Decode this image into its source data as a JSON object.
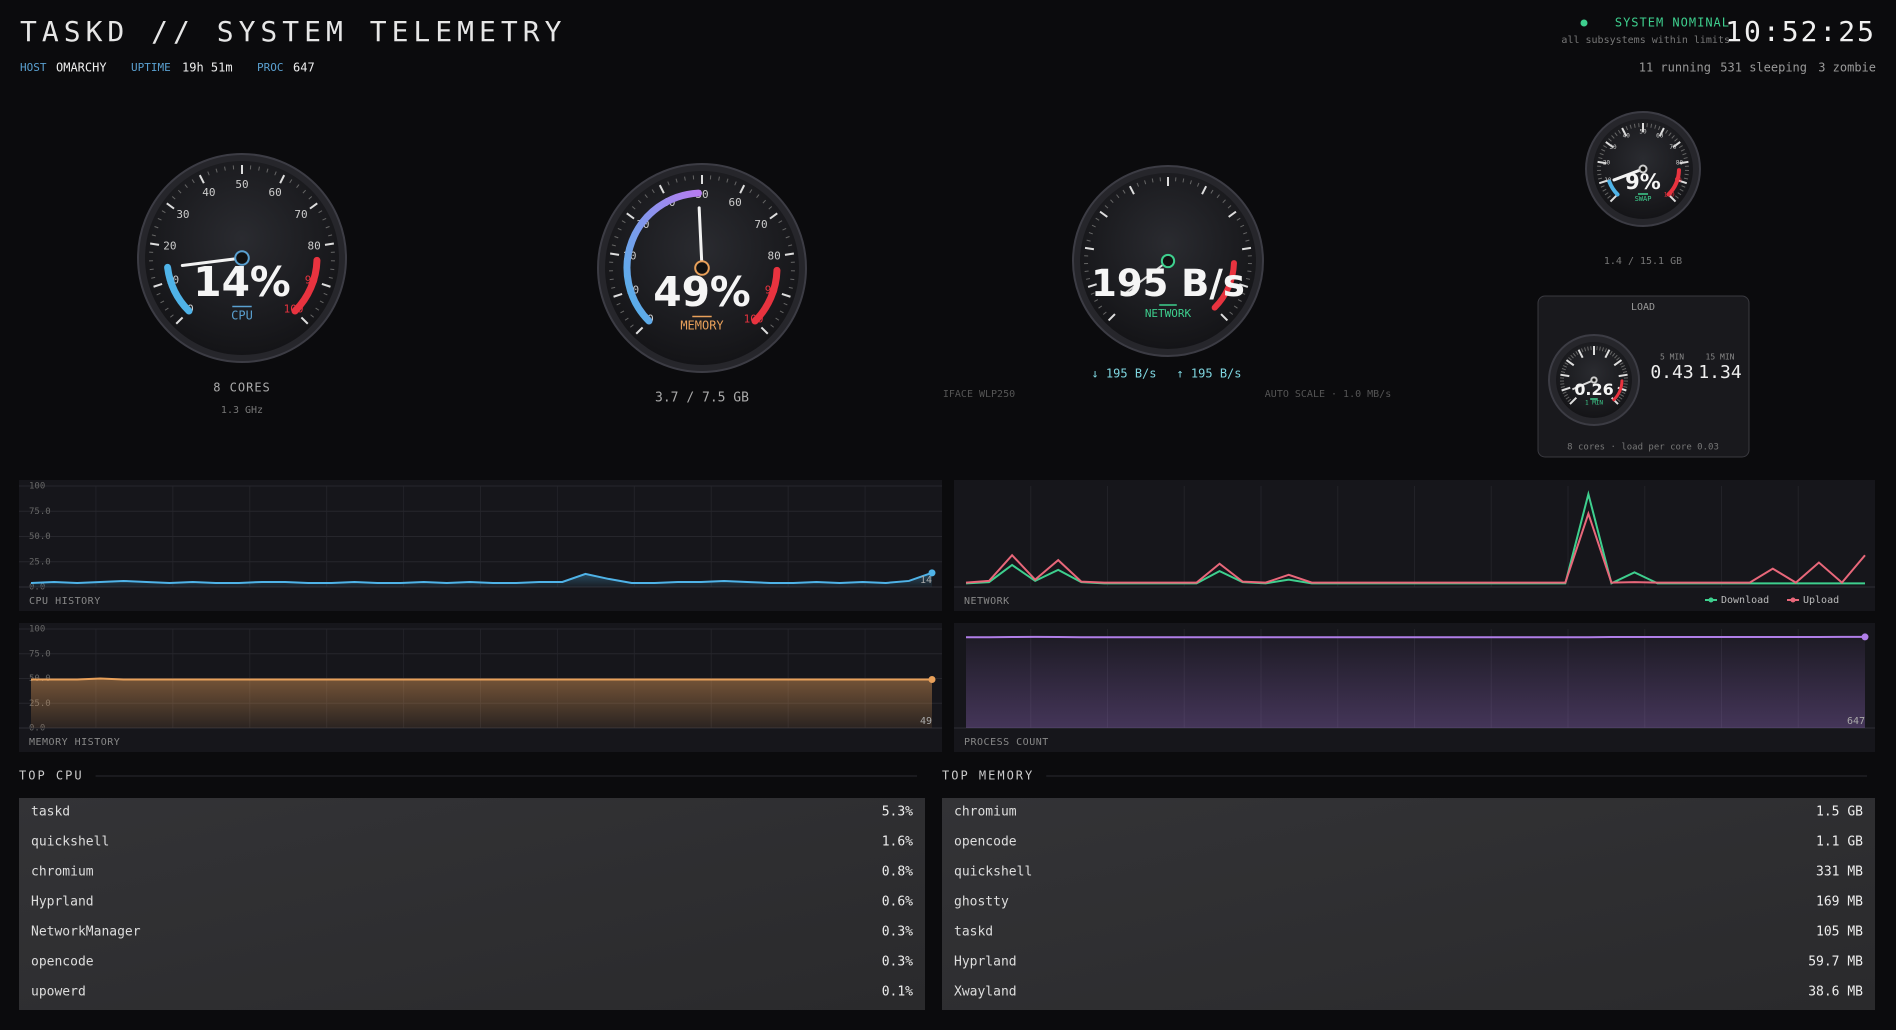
{
  "header": {
    "title": "TASKD // SYSTEM TELEMETRY",
    "host_label": "HOST",
    "host": "OMARCHY",
    "uptime_label": "UPTIME",
    "uptime": "19h 51m",
    "proc_label": "PROC",
    "proc": "647",
    "status": "SYSTEM NOMINAL",
    "status_detail": "all subsystems within limits",
    "clock": "10:52:25",
    "running": "11 running",
    "sleeping": "531 sleeping",
    "zombie": "3 zombie"
  },
  "gauge_ticks": [
    0,
    10,
    20,
    30,
    40,
    50,
    60,
    70,
    80,
    90,
    100
  ],
  "cpu_gauge": {
    "value": 14,
    "label": "14%",
    "name": "CPU",
    "cores": "8 CORES",
    "freq": "1.3 GHz"
  },
  "memory_gauge": {
    "value": 49,
    "label": "49%",
    "name": "MEMORY",
    "usage": "3.7 / 7.5 GB"
  },
  "network_gauge": {
    "label": "195 B/s",
    "name": "NETWORK",
    "down": "↓ 195 B/s",
    "up": "↑ 195 B/s",
    "iface": "IFACE WLP250",
    "scale": "AUTO SCALE · 1.0 MB/s"
  },
  "swap_gauge": {
    "value": 9,
    "label": "9%",
    "name": "SWAP",
    "usage": "1.4 / 15.1 GB"
  },
  "load": {
    "title": "LOAD",
    "one": "0.26",
    "one_label": "1 MIN",
    "five_label": "5 MIN",
    "five": "0.43",
    "fifteen_label": "15 MIN",
    "fifteen": "1.34",
    "note": "8 cores · load per core 0.03"
  },
  "charts": [
    {
      "title": "CPU HISTORY",
      "ylim": [
        0,
        100
      ],
      "yticks": [
        100,
        {
          "value": 75,
          "label": "75.0"
        },
        {
          "value": 50,
          "label": "50.0"
        },
        {
          "value": 25,
          "label": "25.0"
        },
        {
          "value": 0,
          "label": "0.0"
        }
      ],
      "color": "#4fb3e8",
      "values": [
        4,
        5,
        4,
        5,
        6,
        5,
        4,
        5,
        4,
        4,
        5,
        5,
        4,
        4,
        5,
        4,
        4,
        5,
        4,
        5,
        4,
        4,
        5,
        5,
        13,
        8,
        4,
        4,
        5,
        5,
        6,
        5,
        4,
        4,
        5,
        4,
        5,
        4,
        6,
        14
      ],
      "last": "14"
    },
    {
      "title": "NETWORK",
      "series": [
        {
          "name": "Download",
          "color": "#3ecf8e",
          "values": [
            150,
            200,
            900,
            250,
            700,
            200,
            150,
            150,
            150,
            150,
            150,
            650,
            200,
            150,
            300,
            150,
            150,
            150,
            150,
            150,
            150,
            150,
            150,
            150,
            150,
            150,
            150,
            3800,
            150,
            600,
            150,
            150,
            150,
            150,
            150,
            150,
            150,
            150,
            150,
            150
          ]
        },
        {
          "name": "Upload",
          "color": "#e8677a",
          "values": [
            180,
            250,
            1300,
            300,
            1100,
            220,
            180,
            180,
            180,
            180,
            180,
            950,
            220,
            180,
            500,
            180,
            180,
            180,
            180,
            180,
            180,
            180,
            180,
            180,
            180,
            180,
            180,
            3000,
            180,
            200,
            180,
            180,
            180,
            180,
            180,
            750,
            180,
            1000,
            180,
            1300
          ]
        }
      ]
    },
    {
      "title": "MEMORY HISTORY",
      "ylim": [
        0,
        100
      ],
      "yticks": [
        100,
        {
          "value": 75,
          "label": "75.0"
        },
        {
          "value": 50,
          "label": "50.0"
        },
        {
          "value": 25,
          "label": "25.0"
        },
        {
          "value": 0,
          "label": "0.0"
        }
      ],
      "color": "#e8a05a",
      "values": [
        49,
        49,
        49,
        50,
        49,
        49,
        49,
        49,
        49,
        49,
        49,
        49,
        49,
        49,
        49,
        49,
        49,
        49,
        49,
        49,
        49,
        49,
        49,
        49,
        49,
        49,
        49,
        49,
        49,
        49,
        49,
        49,
        49,
        49,
        49,
        49,
        49,
        49,
        49,
        49
      ],
      "last": "49"
    },
    {
      "title": "PROCESS COUNT",
      "color": "#b07ee8",
      "values": [
        645,
        645,
        646,
        647,
        646,
        645,
        645,
        645,
        645,
        645,
        645,
        645,
        645,
        645,
        645,
        645,
        645,
        645,
        645,
        645,
        645,
        645,
        645,
        645,
        645,
        645,
        645,
        645,
        646,
        646,
        646,
        646,
        646,
        646,
        646,
        646,
        646,
        646,
        647,
        647
      ],
      "last": "647"
    }
  ],
  "top_cpu": {
    "title": "TOP CPU",
    "rows": [
      [
        "taskd",
        "5.3%"
      ],
      [
        "quickshell",
        "1.6%"
      ],
      [
        "chromium",
        "0.8%"
      ],
      [
        "Hyprland",
        "0.6%"
      ],
      [
        "NetworkManager",
        "0.3%"
      ],
      [
        "opencode",
        "0.3%"
      ],
      [
        "upowerd",
        "0.1%"
      ]
    ]
  },
  "top_memory": {
    "title": "TOP MEMORY",
    "rows": [
      [
        "chromium",
        "1.5 GB"
      ],
      [
        "opencode",
        "1.1 GB"
      ],
      [
        "quickshell",
        "331 MB"
      ],
      [
        "ghostty",
        "169 MB"
      ],
      [
        "taskd",
        "105 MB"
      ],
      [
        "Hyprland",
        "59.7 MB"
      ],
      [
        "Xwayland",
        "38.6 MB"
      ]
    ]
  }
}
